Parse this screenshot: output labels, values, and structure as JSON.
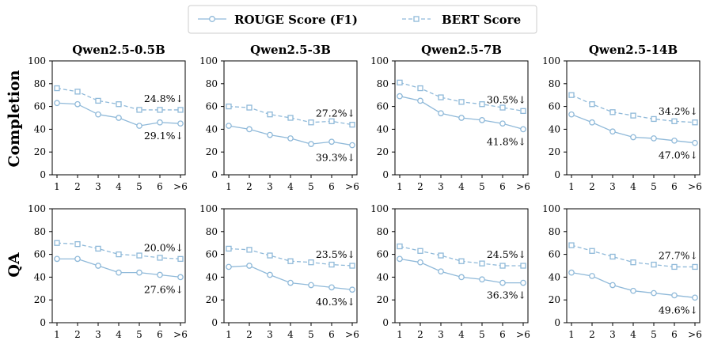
{
  "legend": {
    "rouge_label": "ROUGE Score (F1)",
    "bert_label": "BERT Score"
  },
  "colors": {
    "rouge": "#8fb9d9",
    "bert": "#8fb9d9"
  },
  "row_labels": [
    "Completion",
    "QA"
  ],
  "chart_data": [
    {
      "type": "line",
      "row": "Completion",
      "title": "Qwen2.5-0.5B",
      "categories": [
        "1",
        "2",
        "3",
        "4",
        "5",
        "6",
        ">6"
      ],
      "ylim": [
        0,
        100
      ],
      "yticks": [
        "0",
        "20",
        "40",
        "60",
        "80",
        "100"
      ],
      "series": [
        {
          "name": "ROUGE Score (F1)",
          "values": [
            63,
            62,
            53,
            50,
            43,
            46,
            45
          ]
        },
        {
          "name": "BERT Score",
          "values": [
            76,
            73,
            65,
            62,
            57,
            57,
            57
          ]
        }
      ],
      "annotations": {
        "bert_drop": "24.8%↓",
        "rouge_drop": "29.1%↓"
      }
    },
    {
      "type": "line",
      "row": "Completion",
      "title": "Qwen2.5-3B",
      "categories": [
        "1",
        "2",
        "3",
        "4",
        "5",
        "6",
        ">6"
      ],
      "ylim": [
        0,
        100
      ],
      "yticks": [
        "0",
        "20",
        "40",
        "60",
        "80",
        "100"
      ],
      "series": [
        {
          "name": "ROUGE Score (F1)",
          "values": [
            43,
            40,
            35,
            32,
            27,
            29,
            26
          ]
        },
        {
          "name": "BERT Score",
          "values": [
            60,
            59,
            53,
            50,
            46,
            47,
            44
          ]
        }
      ],
      "annotations": {
        "bert_drop": "27.2%↓",
        "rouge_drop": "39.3%↓"
      }
    },
    {
      "type": "line",
      "row": "Completion",
      "title": "Qwen2.5-7B",
      "categories": [
        "1",
        "2",
        "3",
        "4",
        "5",
        "6",
        ">6"
      ],
      "ylim": [
        0,
        100
      ],
      "yticks": [
        "0",
        "20",
        "40",
        "60",
        "80",
        "100"
      ],
      "series": [
        {
          "name": "ROUGE Score (F1)",
          "values": [
            69,
            65,
            54,
            50,
            48,
            45,
            40
          ]
        },
        {
          "name": "BERT Score",
          "values": [
            81,
            76,
            68,
            64,
            62,
            59,
            56
          ]
        }
      ],
      "annotations": {
        "bert_drop": "30.5%↓",
        "rouge_drop": "41.8%↓"
      }
    },
    {
      "type": "line",
      "row": "Completion",
      "title": "Qwen2.5-14B",
      "categories": [
        "1",
        "2",
        "3",
        "4",
        "5",
        "6",
        ">6"
      ],
      "ylim": [
        0,
        100
      ],
      "yticks": [
        "0",
        "20",
        "40",
        "60",
        "80",
        "100"
      ],
      "series": [
        {
          "name": "ROUGE Score (F1)",
          "values": [
            53,
            46,
            38,
            33,
            32,
            30,
            28
          ]
        },
        {
          "name": "BERT Score",
          "values": [
            70,
            62,
            55,
            52,
            49,
            47,
            46
          ]
        }
      ],
      "annotations": {
        "bert_drop": "34.2%↓",
        "rouge_drop": "47.0%↓"
      }
    },
    {
      "type": "line",
      "row": "QA",
      "title": "",
      "categories": [
        "1",
        "2",
        "3",
        "4",
        "5",
        "6",
        ">6"
      ],
      "ylim": [
        0,
        100
      ],
      "yticks": [
        "0",
        "20",
        "40",
        "60",
        "80",
        "100"
      ],
      "series": [
        {
          "name": "ROUGE Score (F1)",
          "values": [
            56,
            56,
            50,
            44,
            44,
            42,
            40
          ]
        },
        {
          "name": "BERT Score",
          "values": [
            70,
            69,
            65,
            60,
            59,
            57,
            56
          ]
        }
      ],
      "annotations": {
        "bert_drop": "20.0%↓",
        "rouge_drop": "27.6%↓"
      }
    },
    {
      "type": "line",
      "row": "QA",
      "title": "",
      "categories": [
        "1",
        "2",
        "3",
        "4",
        "5",
        "6",
        ">6"
      ],
      "ylim": [
        0,
        100
      ],
      "yticks": [
        "0",
        "20",
        "40",
        "60",
        "80",
        "100"
      ],
      "series": [
        {
          "name": "ROUGE Score (F1)",
          "values": [
            49,
            50,
            42,
            35,
            33,
            31,
            29
          ]
        },
        {
          "name": "BERT Score",
          "values": [
            65,
            64,
            59,
            54,
            53,
            51,
            50
          ]
        }
      ],
      "annotations": {
        "bert_drop": "23.5%↓",
        "rouge_drop": "40.3%↓"
      }
    },
    {
      "type": "line",
      "row": "QA",
      "title": "",
      "categories": [
        "1",
        "2",
        "3",
        "4",
        "5",
        "6",
        ">6"
      ],
      "ylim": [
        0,
        100
      ],
      "yticks": [
        "0",
        "20",
        "40",
        "60",
        "80",
        "100"
      ],
      "series": [
        {
          "name": "ROUGE Score (F1)",
          "values": [
            56,
            53,
            45,
            40,
            38,
            35,
            35
          ]
        },
        {
          "name": "BERT Score",
          "values": [
            67,
            63,
            59,
            54,
            52,
            50,
            50
          ]
        }
      ],
      "annotations": {
        "bert_drop": "24.5%↓",
        "rouge_drop": "36.3%↓"
      }
    },
    {
      "type": "line",
      "row": "QA",
      "title": "",
      "categories": [
        "1",
        "2",
        "3",
        "4",
        "5",
        "6",
        ">6"
      ],
      "ylim": [
        0,
        100
      ],
      "yticks": [
        "0",
        "20",
        "40",
        "60",
        "80",
        "100"
      ],
      "series": [
        {
          "name": "ROUGE Score (F1)",
          "values": [
            44,
            41,
            33,
            28,
            26,
            24,
            22
          ]
        },
        {
          "name": "BERT Score",
          "values": [
            68,
            63,
            58,
            53,
            51,
            49,
            49
          ]
        }
      ],
      "annotations": {
        "bert_drop": "27.7%↓",
        "rouge_drop": "49.6%↓"
      }
    }
  ]
}
